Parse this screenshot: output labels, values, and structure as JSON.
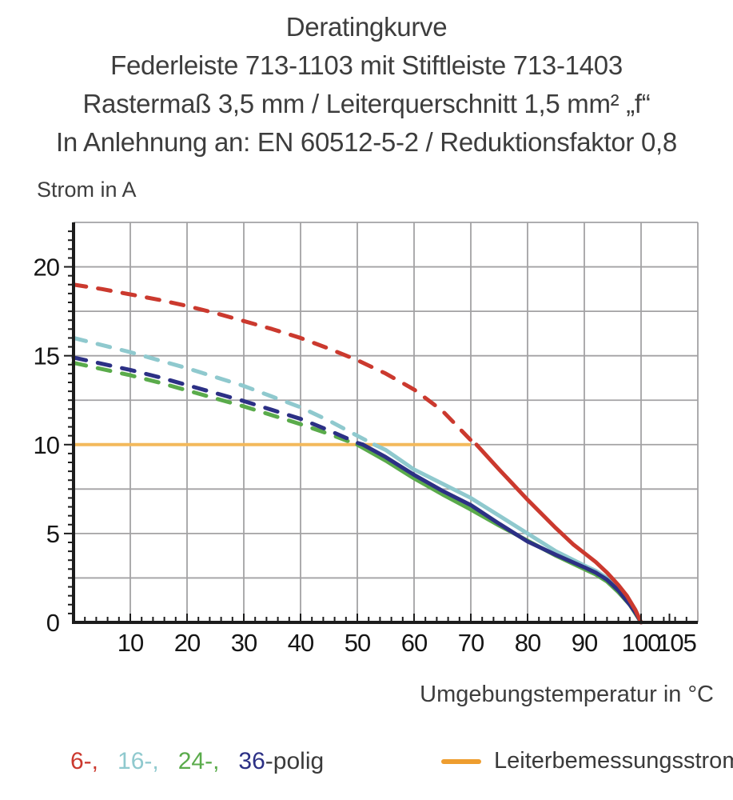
{
  "header": {
    "line1": "Deratingkurve",
    "line2": "Federleiste 713-1103 mit Stiftleiste 713-1403",
    "line3": "Rastermaß 3,5 mm / Leiterquerschnitt 1,5 mm² „f“",
    "line4": "In Anlehnung an: EN 60512-5-2 / Reduktionsfaktor 0,8"
  },
  "chart_data": {
    "type": "line",
    "title": "Deratingkurve",
    "xlabel": "Umgebungstemperatur in °C",
    "ylabel": "Strom in A",
    "xlim": [
      0,
      110
    ],
    "ylim": [
      0,
      22.5
    ],
    "x_gridline_step": 10,
    "y_gridline_step": 2.5,
    "x_minor_tick_step": 2,
    "y_minor_tick_step": 0.5,
    "x_tick_labels": [
      10,
      20,
      30,
      40,
      50,
      60,
      70,
      80,
      90,
      100,
      105
    ],
    "y_tick_labels": [
      0,
      5,
      10,
      15,
      20
    ],
    "grid_color": "#a3a2a4",
    "axis_color": "#1c1c1c",
    "tick_label_color": "#161616",
    "legend_position": "bottom",
    "reference_line": {
      "label": "Leiterbemessungsstrom",
      "y": 10,
      "x_start": 0,
      "x_end": 70,
      "color": "#f3b95c"
    },
    "series": [
      {
        "name": "24-polig",
        "color": "#5aab4b",
        "style": "dashed-then-solid",
        "dashed_until_x": 50,
        "points": [
          [
            0,
            14.6
          ],
          [
            5,
            14.25
          ],
          [
            10,
            13.9
          ],
          [
            15,
            13.5
          ],
          [
            20,
            13.05
          ],
          [
            25,
            12.6
          ],
          [
            30,
            12.15
          ],
          [
            35,
            11.65
          ],
          [
            40,
            11.15
          ],
          [
            45,
            10.6
          ],
          [
            50,
            10.0
          ],
          [
            55,
            9.1
          ],
          [
            60,
            8.1
          ],
          [
            65,
            7.2
          ],
          [
            70,
            6.35
          ],
          [
            75,
            5.45
          ],
          [
            80,
            4.6
          ],
          [
            85,
            3.75
          ],
          [
            90,
            3.0
          ],
          [
            92,
            2.7
          ],
          [
            94,
            2.3
          ],
          [
            96,
            1.7
          ],
          [
            98,
            1.0
          ],
          [
            99,
            0.5
          ],
          [
            100,
            0
          ]
        ]
      },
      {
        "name": "16-polig",
        "color": "#8fc9ce",
        "style": "dashed-then-solid",
        "dashed_until_x": 53,
        "points": [
          [
            0,
            16.0
          ],
          [
            5,
            15.6
          ],
          [
            10,
            15.2
          ],
          [
            15,
            14.75
          ],
          [
            20,
            14.3
          ],
          [
            25,
            13.8
          ],
          [
            30,
            13.3
          ],
          [
            35,
            12.7
          ],
          [
            40,
            12.1
          ],
          [
            45,
            11.35
          ],
          [
            50,
            10.5
          ],
          [
            53,
            10.0
          ],
          [
            55,
            9.7
          ],
          [
            60,
            8.6
          ],
          [
            65,
            7.8
          ],
          [
            70,
            7.0
          ],
          [
            75,
            6.0
          ],
          [
            80,
            5.0
          ],
          [
            85,
            4.0
          ],
          [
            90,
            3.2
          ],
          [
            92,
            2.9
          ],
          [
            94,
            2.5
          ],
          [
            96,
            1.9
          ],
          [
            98,
            1.2
          ],
          [
            99,
            0.7
          ],
          [
            100,
            0
          ]
        ]
      },
      {
        "name": "36-polig",
        "color": "#2c3085",
        "style": "dashed-then-solid",
        "dashed_until_x": 51,
        "points": [
          [
            0,
            14.9
          ],
          [
            5,
            14.55
          ],
          [
            10,
            14.2
          ],
          [
            15,
            13.8
          ],
          [
            20,
            13.35
          ],
          [
            25,
            12.9
          ],
          [
            30,
            12.45
          ],
          [
            35,
            11.95
          ],
          [
            40,
            11.45
          ],
          [
            45,
            10.8
          ],
          [
            50,
            10.1
          ],
          [
            51,
            10.0
          ],
          [
            55,
            9.3
          ],
          [
            60,
            8.3
          ],
          [
            65,
            7.4
          ],
          [
            70,
            6.6
          ],
          [
            75,
            5.55
          ],
          [
            80,
            4.55
          ],
          [
            85,
            3.8
          ],
          [
            90,
            3.1
          ],
          [
            92,
            2.8
          ],
          [
            94,
            2.4
          ],
          [
            96,
            1.8
          ],
          [
            98,
            1.0
          ],
          [
            99,
            0.55
          ],
          [
            100,
            0
          ]
        ]
      },
      {
        "name": "6-polig",
        "color": "#cb392e",
        "style": "dashed-then-solid",
        "dashed_until_x": 71,
        "points": [
          [
            0,
            19.0
          ],
          [
            5,
            18.75
          ],
          [
            10,
            18.45
          ],
          [
            15,
            18.15
          ],
          [
            20,
            17.8
          ],
          [
            25,
            17.4
          ],
          [
            30,
            16.95
          ],
          [
            35,
            16.5
          ],
          [
            40,
            16.0
          ],
          [
            45,
            15.4
          ],
          [
            50,
            14.75
          ],
          [
            55,
            14.0
          ],
          [
            60,
            13.1
          ],
          [
            65,
            11.9
          ],
          [
            70,
            10.25
          ],
          [
            71,
            10.0
          ],
          [
            75,
            8.6
          ],
          [
            80,
            6.9
          ],
          [
            85,
            5.3
          ],
          [
            88,
            4.4
          ],
          [
            90,
            3.9
          ],
          [
            92,
            3.4
          ],
          [
            94,
            2.8
          ],
          [
            96,
            2.1
          ],
          [
            97.5,
            1.5
          ],
          [
            99,
            0.7
          ],
          [
            99.5,
            0.35
          ],
          [
            100,
            0
          ]
        ]
      }
    ]
  },
  "legend": {
    "pole_items": [
      {
        "label": "6-,",
        "color": "#cb392e"
      },
      {
        "label": "16-,",
        "color": "#8fc9ce"
      },
      {
        "label": "24-,",
        "color": "#5aab4b"
      },
      {
        "label": "36",
        "color": "#2c3085"
      }
    ],
    "pole_suffix": "-polig",
    "reference_label": "Leiterbemessungsstrom",
    "reference_color": "#ee9d2f"
  }
}
